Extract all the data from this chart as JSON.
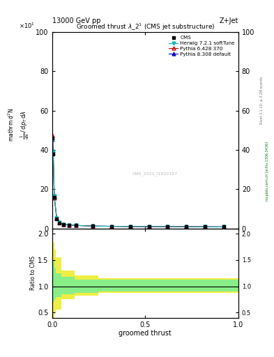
{
  "title": "Groomed thrust $\\lambda\\_2^{1}$ (CMS jet substructure)",
  "top_left_label": "13000 GeV pp",
  "top_right_label": "Z+Jet",
  "watermark": "CMS_2021_I1920187",
  "rivet_label": "Rivet 3.1.10; ≥ 3.2M events",
  "mcplots_label": "mcplots.cern.ch [arXiv:1306.3436]",
  "xlabel": "groomed thrust",
  "ylim_main": [
    0,
    100
  ],
  "ylim_ratio": [
    0.4,
    2.1
  ],
  "xlim": [
    0,
    1
  ],
  "yticks_main": [
    0,
    20,
    40,
    60,
    80,
    100
  ],
  "yticks_ratio": [
    0.5,
    1.0,
    1.5,
    2.0
  ],
  "xticks": [
    0,
    0.5,
    1.0
  ],
  "cms_x": [
    0.003,
    0.006,
    0.012,
    0.025,
    0.04,
    0.06,
    0.09,
    0.13,
    0.22,
    0.32,
    0.42,
    0.52,
    0.62,
    0.72,
    0.82,
    0.92
  ],
  "cms_y": [
    46,
    38,
    16,
    5,
    2.8,
    2.0,
    1.7,
    1.5,
    1.2,
    1.1,
    1.0,
    1.0,
    0.95,
    0.9,
    0.85,
    0.8
  ],
  "herwig_x": [
    0.003,
    0.006,
    0.012,
    0.025,
    0.04,
    0.06,
    0.09,
    0.13,
    0.22,
    0.32,
    0.42,
    0.52,
    0.62,
    0.72,
    0.82,
    0.92
  ],
  "herwig_y": [
    45,
    39,
    16.5,
    5.2,
    3.0,
    2.1,
    1.8,
    1.55,
    1.22,
    1.1,
    1.01,
    1.0,
    0.96,
    0.91,
    0.86,
    0.81
  ],
  "herwig_color": "#00BBBB",
  "pythia6_x": [
    0.003,
    0.006,
    0.012,
    0.025,
    0.04,
    0.06,
    0.09,
    0.13,
    0.22,
    0.32,
    0.42,
    0.52,
    0.62,
    0.72,
    0.82,
    0.92
  ],
  "pythia6_y": [
    47.5,
    38.5,
    15.5,
    5.1,
    3.0,
    2.1,
    1.8,
    1.55,
    1.22,
    1.1,
    1.01,
    1.0,
    0.96,
    0.91,
    0.86,
    0.81
  ],
  "pythia6_color": "#CC0000",
  "pythia8_x": [
    0.003,
    0.006,
    0.012,
    0.025,
    0.04,
    0.06,
    0.09,
    0.13,
    0.22,
    0.32,
    0.42,
    0.52,
    0.62,
    0.72,
    0.82,
    0.92
  ],
  "pythia8_y": [
    45.5,
    39.5,
    16.2,
    5.15,
    3.05,
    2.12,
    1.82,
    1.57,
    1.23,
    1.11,
    1.01,
    1.0,
    0.96,
    0.91,
    0.86,
    0.81
  ],
  "pythia8_color": "#0000CC",
  "ratio_yellow_edges": [
    0.0,
    0.003,
    0.006,
    0.012,
    0.02,
    0.05,
    0.12,
    0.25,
    1.0
  ],
  "ratio_yellow_upper": [
    1.9,
    1.85,
    1.85,
    1.7,
    1.55,
    1.3,
    1.2,
    1.15,
    1.15
  ],
  "ratio_yellow_lower": [
    0.5,
    0.45,
    0.4,
    0.5,
    0.55,
    0.75,
    0.82,
    0.87,
    0.87
  ],
  "ratio_green_edges": [
    0.0,
    0.003,
    0.006,
    0.012,
    0.02,
    0.05,
    0.12,
    0.25,
    1.0
  ],
  "ratio_green_upper": [
    1.35,
    1.3,
    1.5,
    1.35,
    1.25,
    1.18,
    1.13,
    1.12,
    1.12
  ],
  "ratio_green_lower": [
    0.85,
    0.8,
    0.7,
    0.75,
    0.8,
    0.85,
    0.88,
    0.9,
    0.9
  ],
  "background_color": "#ffffff",
  "cms_marker_color": "#000000",
  "ratio_green_color": "#88EE88",
  "ratio_yellow_color": "#EEEE44"
}
